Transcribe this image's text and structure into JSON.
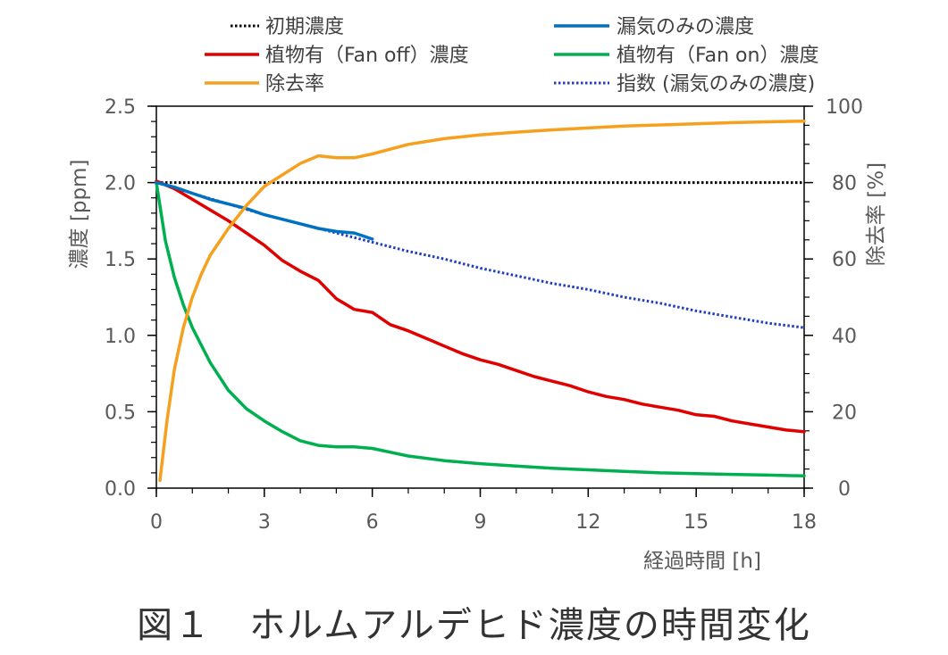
{
  "chart_data": {
    "type": "line",
    "caption": "図１　ホルムアルデヒド濃度の時間変化",
    "xlabel": "経過時間 [h]",
    "ylabel": "濃度 [ppm]",
    "y2label": "除去率 [%]",
    "xlim": [
      0,
      18
    ],
    "ylim": [
      0,
      2.5
    ],
    "y2lim": [
      0,
      100
    ],
    "xticks": [
      "0",
      "3",
      "6",
      "9",
      "12",
      "15",
      "18"
    ],
    "yticks": [
      "0.0",
      "0.5",
      "1.0",
      "1.5",
      "2.0",
      "2.5"
    ],
    "y2ticks": [
      "0",
      "20",
      "40",
      "60",
      "80",
      "100"
    ],
    "series": [
      {
        "id": "initial",
        "name": "初期濃度",
        "color": "#000000",
        "style": "dotted",
        "axis": "left",
        "x": [
          0,
          18
        ],
        "y": [
          2.0,
          2.0
        ]
      },
      {
        "id": "leak",
        "name": "漏気のみの濃度",
        "color": "#0070C0",
        "style": "solid",
        "axis": "left",
        "x": [
          0,
          0.5,
          1,
          1.5,
          2,
          2.5,
          3,
          3.5,
          4,
          4.5,
          5,
          5.5,
          6
        ],
        "y": [
          2.0,
          1.97,
          1.93,
          1.89,
          1.86,
          1.83,
          1.79,
          1.76,
          1.73,
          1.7,
          1.68,
          1.67,
          1.63
        ]
      },
      {
        "id": "fan_off",
        "name": "植物有（Fan off）濃度",
        "color": "#E00000",
        "style": "solid",
        "axis": "left",
        "x": [
          0,
          0.5,
          1,
          1.5,
          2,
          2.5,
          3,
          3.5,
          4,
          4.5,
          5,
          5.5,
          6,
          6.5,
          7,
          7.5,
          8,
          8.5,
          9,
          9.5,
          10,
          10.5,
          11,
          11.5,
          12,
          12.5,
          13,
          13.5,
          14,
          14.5,
          15,
          15.5,
          16,
          16.5,
          17,
          17.5,
          18
        ],
        "y": [
          2.01,
          1.96,
          1.89,
          1.82,
          1.75,
          1.67,
          1.59,
          1.49,
          1.42,
          1.36,
          1.24,
          1.17,
          1.15,
          1.07,
          1.03,
          0.98,
          0.93,
          0.88,
          0.84,
          0.81,
          0.77,
          0.73,
          0.7,
          0.67,
          0.63,
          0.6,
          0.58,
          0.55,
          0.53,
          0.51,
          0.48,
          0.47,
          0.44,
          0.42,
          0.4,
          0.38,
          0.37
        ]
      },
      {
        "id": "fan_on",
        "name": "植物有（Fan on）濃度",
        "color": "#00B050",
        "style": "solid",
        "axis": "left",
        "x": [
          0,
          0.25,
          0.5,
          0.75,
          1,
          1.5,
          2,
          2.5,
          3,
          3.5,
          4,
          4.5,
          5,
          5.5,
          6,
          7,
          8,
          9,
          10,
          11,
          12,
          13,
          14,
          15,
          16,
          17,
          18
        ],
        "y": [
          2.0,
          1.62,
          1.38,
          1.2,
          1.05,
          0.82,
          0.64,
          0.52,
          0.44,
          0.37,
          0.31,
          0.28,
          0.27,
          0.27,
          0.26,
          0.21,
          0.18,
          0.16,
          0.145,
          0.13,
          0.12,
          0.11,
          0.1,
          0.095,
          0.09,
          0.085,
          0.08
        ]
      },
      {
        "id": "removal",
        "name": "除去率",
        "color": "#F5A01E",
        "style": "solid",
        "axis": "right",
        "x": [
          0.1,
          0.3,
          0.5,
          0.75,
          1,
          1.25,
          1.5,
          2,
          2.5,
          3,
          3.5,
          4,
          4.5,
          5,
          5.5,
          6,
          7,
          8,
          9,
          10,
          11,
          12,
          13,
          14,
          15,
          16,
          17,
          18
        ],
        "y": [
          2,
          18,
          31,
          42,
          50,
          56,
          61,
          68,
          74,
          79,
          82,
          85,
          87,
          86.5,
          86.5,
          87.5,
          90,
          91.5,
          92.5,
          93.2,
          93.8,
          94.3,
          94.8,
          95.1,
          95.4,
          95.7,
          95.9,
          96.1
        ]
      },
      {
        "id": "exp_fit",
        "name": "指数 (漏気のみの濃度)",
        "color": "#1F3FBF",
        "style": "dotted",
        "axis": "left",
        "x": [
          0,
          1,
          2,
          3,
          4,
          5,
          6,
          7,
          8,
          9,
          10,
          11,
          12,
          13,
          14,
          15,
          16,
          17,
          18
        ],
        "y": [
          2.0,
          1.93,
          1.86,
          1.79,
          1.73,
          1.67,
          1.61,
          1.55,
          1.5,
          1.44,
          1.39,
          1.34,
          1.3,
          1.25,
          1.21,
          1.16,
          1.12,
          1.08,
          1.05
        ]
      }
    ]
  }
}
